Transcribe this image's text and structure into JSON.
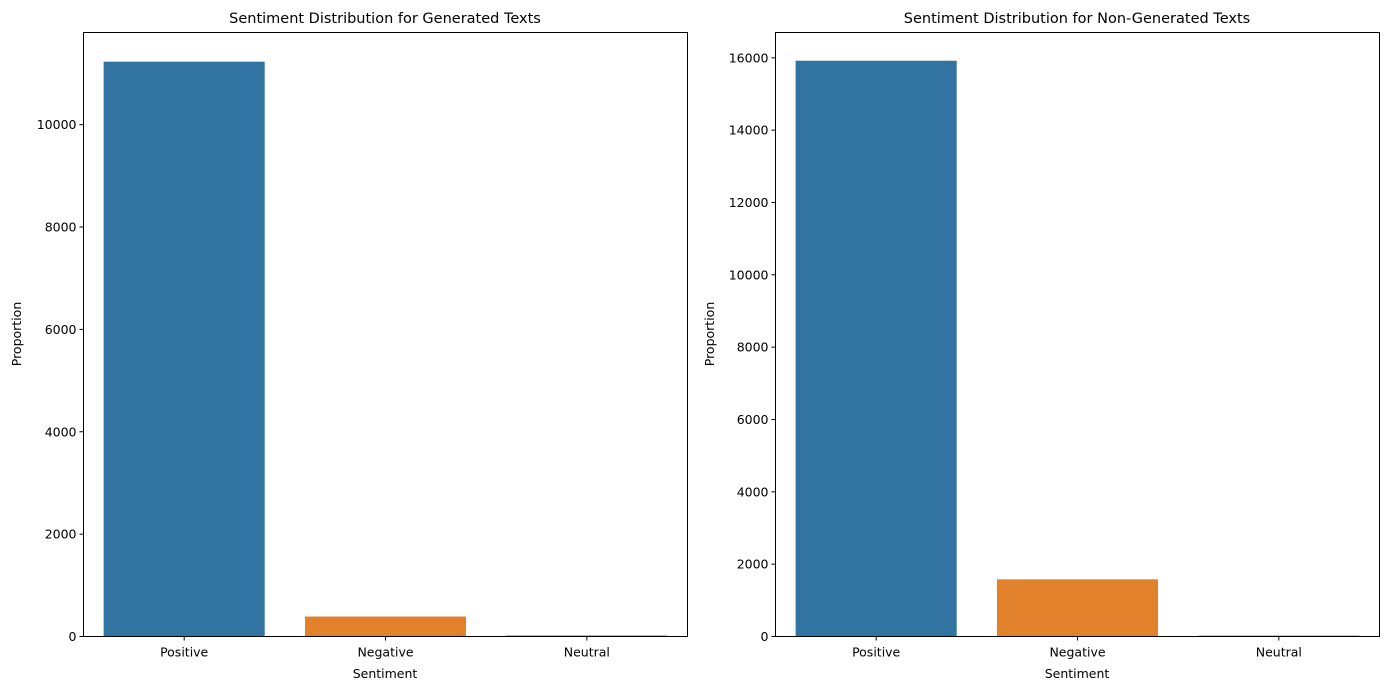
{
  "chart_data": [
    {
      "type": "bar",
      "title": "Sentiment Distribution for Generated Texts",
      "xlabel": "Sentiment",
      "ylabel": "Proportion",
      "categories": [
        "Positive",
        "Negative",
        "Neutral"
      ],
      "values": [
        11230,
        390,
        20
      ],
      "colors": [
        "#3274a1",
        "#e1812c",
        "#3a923a"
      ],
      "ylim": [
        0,
        11800
      ],
      "yticks": [
        0,
        2000,
        4000,
        6000,
        8000,
        10000
      ],
      "ytick_labels": [
        "0",
        "2000",
        "4000",
        "6000",
        "8000",
        "10000"
      ],
      "grid": false,
      "legend": "none"
    },
    {
      "type": "bar",
      "title": "Sentiment Distribution for Non-Generated Texts",
      "xlabel": "Sentiment",
      "ylabel": "Proportion",
      "categories": [
        "Positive",
        "Negative",
        "Neutral"
      ],
      "values": [
        15920,
        1580,
        25
      ],
      "colors": [
        "#3274a1",
        "#e1812c",
        "#3a923a"
      ],
      "ylim": [
        0,
        16700
      ],
      "yticks": [
        0,
        2000,
        4000,
        6000,
        8000,
        10000,
        12000,
        14000,
        16000
      ],
      "ytick_labels": [
        "0",
        "2000",
        "4000",
        "6000",
        "8000",
        "10000",
        "12000",
        "14000",
        "16000"
      ],
      "grid": false,
      "legend": "none"
    }
  ]
}
